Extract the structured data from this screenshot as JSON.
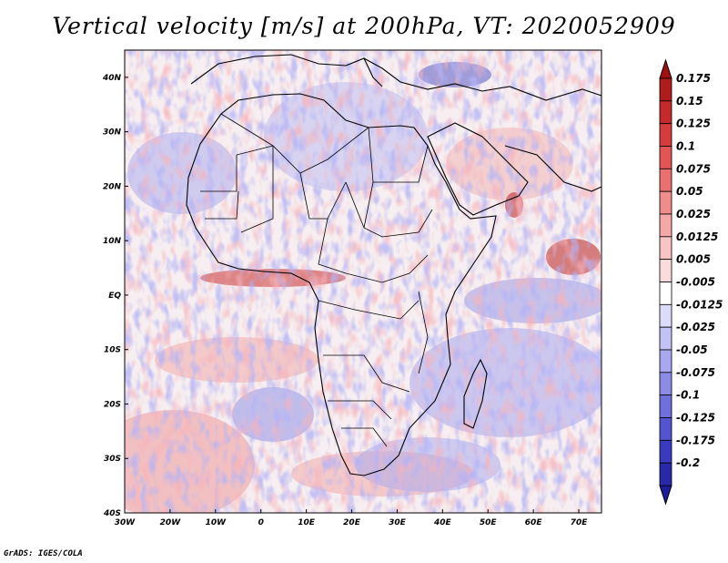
{
  "title": "Vertical velocity [m/s] at 200hPa, VT: 2020052909",
  "credit": "GrADS: IGES/COLA",
  "map": {
    "lon_range": [
      -30,
      75
    ],
    "lat_range": [
      -40,
      45
    ],
    "lon_ticks": [
      {
        "value": -30,
        "label": "30W"
      },
      {
        "value": -20,
        "label": "20W"
      },
      {
        "value": -10,
        "label": "10W"
      },
      {
        "value": 0,
        "label": "0"
      },
      {
        "value": 10,
        "label": "10E"
      },
      {
        "value": 20,
        "label": "20E"
      },
      {
        "value": 30,
        "label": "30E"
      },
      {
        "value": 40,
        "label": "40E"
      },
      {
        "value": 50,
        "label": "50E"
      },
      {
        "value": 60,
        "label": "60E"
      },
      {
        "value": 70,
        "label": "70E"
      }
    ],
    "lat_ticks": [
      {
        "value": 40,
        "label": "40N"
      },
      {
        "value": 30,
        "label": "30N"
      },
      {
        "value": 20,
        "label": "20N"
      },
      {
        "value": 10,
        "label": "10N"
      },
      {
        "value": 0,
        "label": "EQ"
      },
      {
        "value": -10,
        "label": "10S"
      },
      {
        "value": -20,
        "label": "20S"
      },
      {
        "value": -30,
        "label": "30S"
      },
      {
        "value": -40,
        "label": "40S"
      }
    ]
  },
  "colorbar": {
    "levels": [
      {
        "label": "0.175",
        "color": "#b01c1c"
      },
      {
        "label": "0.15",
        "color": "#c42a2a"
      },
      {
        "label": "0.125",
        "color": "#d63c3c"
      },
      {
        "label": "0.1",
        "color": "#e35454"
      },
      {
        "label": "0.075",
        "color": "#ea7070"
      },
      {
        "label": "0.05",
        "color": "#ef8c8c"
      },
      {
        "label": "0.025",
        "color": "#f4a8a8"
      },
      {
        "label": "0.0125",
        "color": "#f8c4c4"
      },
      {
        "label": "0.005",
        "color": "#fbdcdc"
      },
      {
        "label": "-0.005",
        "color": "#ffffff"
      },
      {
        "label": "-0.0125",
        "color": "#dcdcfa"
      },
      {
        "label": "-0.025",
        "color": "#c2c2f4"
      },
      {
        "label": "-0.05",
        "color": "#a8a8ee"
      },
      {
        "label": "-0.075",
        "color": "#8c8ce6"
      },
      {
        "label": "-0.1",
        "color": "#7070dc"
      },
      {
        "label": "-0.125",
        "color": "#5454d0"
      },
      {
        "label": "-0.175",
        "color": "#3a3ac0"
      },
      {
        "label": "-0.2",
        "color": "#2828a8"
      }
    ],
    "top_color": "#a01010",
    "bottom_color": "#1c1c9c"
  }
}
